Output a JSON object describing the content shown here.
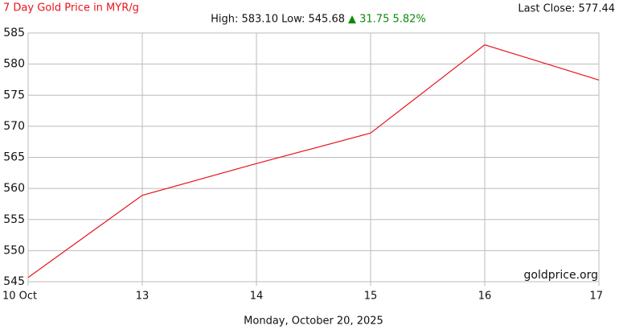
{
  "chart_data": {
    "type": "line",
    "title": "7 Day Gold Price in MYR/g",
    "last_close": "Last Close: 577.44",
    "high_low": "High: 583.10 Low: 545.68",
    "change": "▲ 31.75 5.82%",
    "watermark": "goldprice.org",
    "x_label": "Monday, October 20, 2025",
    "categories": [
      "10 Oct",
      "13",
      "14",
      "15",
      "16",
      "17"
    ],
    "values": [
      545.68,
      558.9,
      564.0,
      568.9,
      583.1,
      577.44
    ],
    "color": "#e8141c",
    "ylim": [
      545,
      585
    ],
    "yticks": [
      545,
      550,
      555,
      560,
      565,
      570,
      575,
      580,
      585
    ],
    "grid": true
  }
}
